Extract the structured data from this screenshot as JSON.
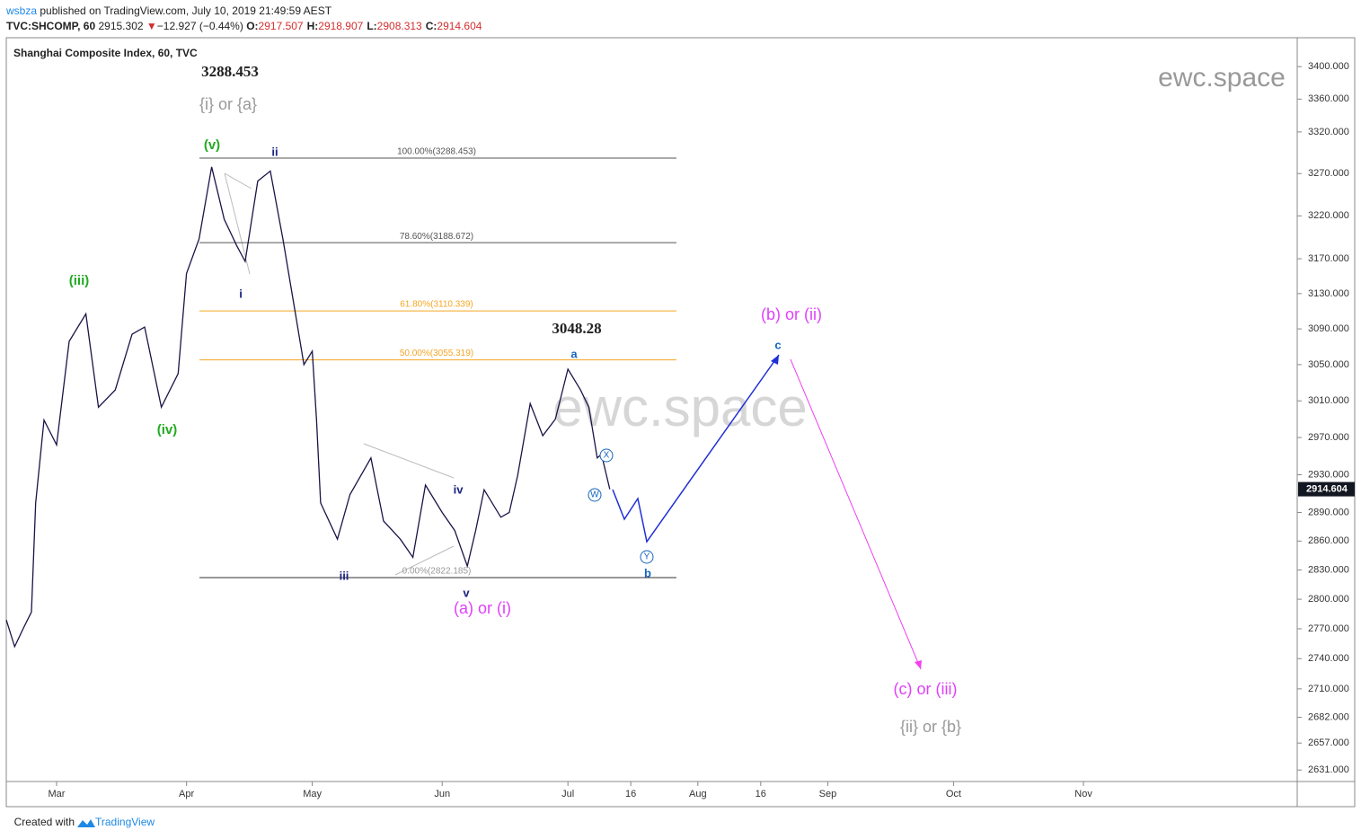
{
  "header": {
    "author": "wsbza",
    "published": "published on TradingView.com, July 10, 2019 21:49:59 AEST",
    "symbol": "TVC:SHCOMP, 60",
    "last": "2915.302",
    "arrow": "▼",
    "change": "−12.927 (−0.44%)",
    "ohlc": [
      {
        "label": "O:",
        "value": "2917.507"
      },
      {
        "label": "H:",
        "value": "2918.907"
      },
      {
        "label": "L:",
        "value": "2908.313"
      },
      {
        "label": "C:",
        "value": "2914.604"
      }
    ]
  },
  "chart_data": {
    "type": "line",
    "title": "Shanghai Composite Index, 60, TVC",
    "color": "#1a1447",
    "log_scale": true,
    "x": [
      48,
      50,
      52,
      54,
      55,
      57,
      60,
      63,
      67,
      70,
      74,
      78,
      81,
      85,
      89,
      91,
      94,
      97,
      100,
      103,
      105,
      108,
      111,
      114,
      117,
      119,
      121,
      122,
      123,
      127,
      130,
      135,
      138,
      142,
      145,
      148,
      152,
      155,
      158,
      160,
      162,
      166,
      168,
      170,
      173,
      176,
      179,
      182,
      185,
      187,
      189,
      190,
      192
    ],
    "values": [
      2779,
      2752,
      2770,
      2787,
      2900,
      2989,
      2962,
      3076,
      3107,
      3003,
      3022,
      3084,
      3092,
      3003,
      3040,
      3153,
      3193,
      3278,
      3216,
      3185,
      3167,
      3261,
      3273,
      3193,
      3107,
      3050,
      3065,
      2990,
      2900,
      2862,
      2909,
      2948,
      2881,
      2862,
      2843,
      2919,
      2890,
      2871,
      2834,
      2871,
      2914,
      2885,
      2890,
      2929,
      3007,
      2972,
      2990,
      3045,
      3022,
      3003,
      2948,
      2952,
      2914.604
    ],
    "xlim": [
      48,
      356
    ],
    "xticks": [
      {
        "value": 60,
        "label": "Mar"
      },
      {
        "value": 91,
        "label": "Apr"
      },
      {
        "value": 121,
        "label": "May"
      },
      {
        "value": 152,
        "label": "Jun"
      },
      {
        "value": 182,
        "label": "Jul"
      },
      {
        "value": 197,
        "label": "16"
      },
      {
        "value": 213,
        "label": "Aug"
      },
      {
        "value": 228,
        "label": "16"
      },
      {
        "value": 244,
        "label": "Sep"
      },
      {
        "value": 274,
        "label": "Oct"
      },
      {
        "value": 305,
        "label": "Nov"
      }
    ],
    "ylim": [
      2620,
      3436
    ],
    "yticks": [
      {
        "value": 3400,
        "label": "3400.000"
      },
      {
        "value": 3360,
        "label": "3360.000"
      },
      {
        "value": 3320,
        "label": "3320.000"
      },
      {
        "value": 3270,
        "label": "3270.000"
      },
      {
        "value": 3220,
        "label": "3220.000"
      },
      {
        "value": 3170,
        "label": "3170.000"
      },
      {
        "value": 3130,
        "label": "3130.000"
      },
      {
        "value": 3090,
        "label": "3090.000"
      },
      {
        "value": 3050,
        "label": "3050.000"
      },
      {
        "value": 3010,
        "label": "3010.000"
      },
      {
        "value": 2970,
        "label": "2970.000"
      },
      {
        "value": 2930,
        "label": "2930.000"
      },
      {
        "value": 2890,
        "label": "2890.000"
      },
      {
        "value": 2860,
        "label": "2860.000"
      },
      {
        "value": 2830,
        "label": "2830.000"
      },
      {
        "value": 2800,
        "label": "2800.000"
      },
      {
        "value": 2770,
        "label": "2770.000"
      },
      {
        "value": 2740,
        "label": "2740.000"
      },
      {
        "value": 2710,
        "label": "2710.000"
      },
      {
        "value": 2682,
        "label": "2682.000"
      },
      {
        "value": 2657,
        "label": "2657.000"
      },
      {
        "value": 2631,
        "label": "2631.000"
      }
    ],
    "last_price": {
      "value": 2914.604,
      "label": "2914.604"
    },
    "fib_levels": [
      {
        "value": 3288.453,
        "label": "100.00%(3288.453)",
        "color": "#555555"
      },
      {
        "value": 3188.672,
        "label": "78.60%(3188.672)",
        "color": "#555555"
      },
      {
        "value": 3110.339,
        "label": "61.80%(3110.339)",
        "color": "#f5a623"
      },
      {
        "value": 3055.319,
        "label": "50.00%(3055.319)",
        "color": "#f5a623"
      },
      {
        "value": 2822.185,
        "label": "0.00%(2822.185)",
        "color": "#333333"
      }
    ],
    "annotations": [
      "3288.453",
      "{i} or {a}",
      "(v)",
      "ii",
      "(iii)",
      "i",
      "(iv)",
      "iii",
      "iv",
      "v",
      "(a) or (i)",
      "3048.28",
      "a",
      "X",
      "W",
      "Y",
      "b",
      "c",
      "(b) or (ii)",
      "(c) or (iii)",
      "{ii} or {b}"
    ],
    "watermark": "ewc.space"
  },
  "footer": {
    "text": "Created with",
    "brand": "TradingView"
  }
}
